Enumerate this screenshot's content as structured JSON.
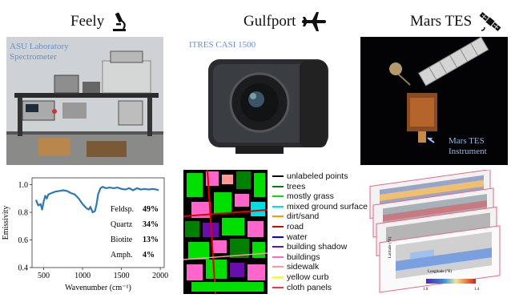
{
  "columns": [
    {
      "title": "Feely",
      "icon": "microscope-icon"
    },
    {
      "title": "Gulfport",
      "icon": "airplane-icon"
    },
    {
      "title": "Mars TES",
      "icon": "satellite-icon"
    }
  ],
  "photos": {
    "lab_caption_1": "ASU Laboratory",
    "lab_caption_2": "Spectrometer",
    "camera_caption": "ITRES CASI 1500",
    "mars_caption_1": "Mars TES",
    "mars_caption_2": "Instrument"
  },
  "chart_data": {
    "type": "line",
    "xlabel": "Wavenumber (cm⁻¹)",
    "ylabel": "Emissivity",
    "x_ticks": [
      "500",
      "1000",
      "1500",
      "2000"
    ],
    "y_ticks": [
      "0.4",
      "0.6",
      "0.8",
      "1.0"
    ],
    "xlim": [
      350,
      2050
    ],
    "ylim": [
      0.4,
      1.05
    ],
    "series": [
      {
        "color": "#2f78b7",
        "x": [
          400,
          430,
          460,
          480,
          500,
          520,
          540,
          560,
          600,
          650,
          700,
          750,
          800,
          850,
          900,
          950,
          1000,
          1050,
          1080,
          1100,
          1130,
          1160,
          1180,
          1200,
          1230,
          1260,
          1300,
          1350,
          1400,
          1450,
          1500,
          1550,
          1600,
          1650,
          1700,
          1750,
          1800,
          1850,
          1900,
          1950,
          1980
        ],
        "y": [
          0.89,
          0.85,
          0.86,
          0.82,
          0.88,
          0.92,
          0.9,
          0.93,
          0.94,
          0.95,
          0.955,
          0.96,
          0.955,
          0.94,
          0.93,
          0.9,
          0.86,
          0.83,
          0.82,
          0.84,
          0.8,
          0.81,
          0.86,
          0.93,
          0.975,
          0.985,
          0.975,
          0.98,
          0.975,
          0.98,
          0.97,
          0.965,
          0.975,
          0.96,
          0.975,
          0.965,
          0.97,
          0.965,
          0.97,
          0.965,
          0.96
        ]
      }
    ],
    "annotations": [
      {
        "label": "Feldsp.",
        "value": "49%"
      },
      {
        "label": "Quartz",
        "value": "34%"
      },
      {
        "label": "Biotite",
        "value": "13%"
      },
      {
        "label": "Amph.",
        "value": "4%"
      }
    ]
  },
  "legend": [
    {
      "label": "unlabeled points",
      "color": "#000000"
    },
    {
      "label": "trees",
      "color": "#008000"
    },
    {
      "label": "mostly grass",
      "color": "#00e000"
    },
    {
      "label": "mixed ground surface",
      "color": "#00e0e0"
    },
    {
      "label": "dirt/sand",
      "color": "#ff9900"
    },
    {
      "label": "road",
      "color": "#e00000"
    },
    {
      "label": "water",
      "color": "#0000ff"
    },
    {
      "label": "building shadow",
      "color": "#6a0dad"
    },
    {
      "label": "buildings",
      "color": "#ff66cc"
    },
    {
      "label": "sidewalk",
      "color": "#ff9999"
    },
    {
      "label": "yellow curb",
      "color": "#ffff00"
    },
    {
      "label": "cloth panels",
      "color": "#ff3333"
    }
  ],
  "mars_plot": {
    "ylabel": "Latitude (°E)",
    "xlabel": "Longitude (°E)",
    "cbar_min": "1.0",
    "cbar_max": "1.4"
  }
}
